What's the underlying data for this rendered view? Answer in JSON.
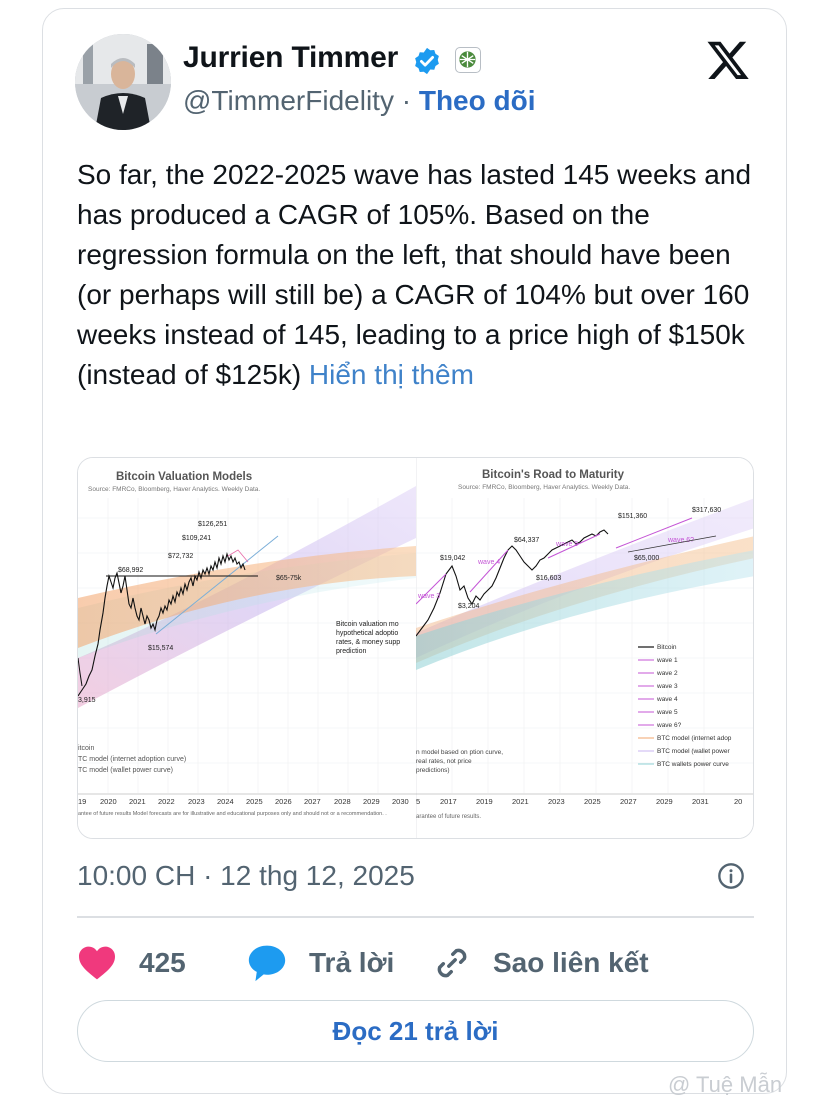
{
  "author": {
    "name": "Jurrien Timmer",
    "handle": "@TimmerFidelity",
    "separator": "·",
    "follow_label": "Theo dõi"
  },
  "tweet": {
    "text": "So far, the 2022-2025 wave has lasted 145 weeks and has produced a CAGR of 105%. Based on the regression formula on the left, that should have been (or perhaps will still be) a CAGR of 104% but over 160 weeks instead of 145, leading to a price high of $150k (instead of $125k) ",
    "show_more": "Hiển thị thêm"
  },
  "chart_data": [
    {
      "type": "line",
      "title": "Bitcoin Valuation Models",
      "subtitle": "Source: FMRCo, Bloomberg, Haver Analytics. Weekly Data.",
      "x_ticks": [
        "19",
        "2020",
        "2021",
        "2022",
        "2023",
        "2024",
        "2025",
        "2026",
        "2027",
        "2028",
        "2029",
        "2030"
      ],
      "y_scale": "log",
      "annotations": [
        "$126,251",
        "$109,241",
        "$72,732",
        "$68,992",
        "$65-75k",
        "$15,574",
        "3,915"
      ],
      "note": "Bitcoin valuation mo hypothetical adoptio rates, & money supp prediction",
      "legend": [
        "itcoin",
        "TC model (internet adoption curve)",
        "TC model (wallet power curve)"
      ],
      "footnote": "antee of future results Model forecasts are for illustrative and educational purposes only and should not or a recommendation. ."
    },
    {
      "type": "line",
      "title": "Bitcoin's Road to Maturity",
      "subtitle": "Source: FMRCo, Bloomberg, Haver Analytics. Weekly Data.",
      "x_ticks": [
        "5",
        "2017",
        "2019",
        "2021",
        "2023",
        "2025",
        "2027",
        "2029",
        "2031",
        "20"
      ],
      "y_scale": "log",
      "annotations": [
        "$317,630",
        "$151,360",
        "$64,337",
        "$19,042",
        "$16,603",
        "$3,204",
        "$65,000",
        "wave 3",
        "wave 4",
        "wave 5",
        "wave 6?"
      ],
      "legend": [
        "Bitcoin",
        "wave 1",
        "wave 2",
        "wave 3",
        "wave 4",
        "wave 5",
        "wave 6?",
        "BTC model (internet adop",
        "BTC model (wallet power",
        "BTC wallets power curve"
      ],
      "note": "n model based on ption curve, real rates, not price predictions)",
      "footnote": "arantee of future results."
    }
  ],
  "meta": {
    "timestamp": "10:00 CH · 12 thg 12, 2025"
  },
  "actions": {
    "likes_count": "425",
    "reply_label": "Trả lời",
    "copy_link_label": "Sao liên kết",
    "read_replies_label": "Đọc 21 trả lời"
  },
  "watermark": "@ Tuệ Mẫn",
  "colors": {
    "accent_blue": "#2b6cc4",
    "link_blue": "#3f82c9",
    "heart_pink": "#f0397d",
    "reply_blue": "#1d9bf0",
    "verified_blue": "#1d9bf0",
    "muted_gray": "#536471"
  },
  "icons": {
    "verified": "verified-badge-icon",
    "org": "fidelity-logo-icon",
    "platform": "x-logo-icon",
    "info": "info-icon",
    "like": "heart-icon",
    "reply": "speech-bubble-icon",
    "link": "link-icon"
  }
}
